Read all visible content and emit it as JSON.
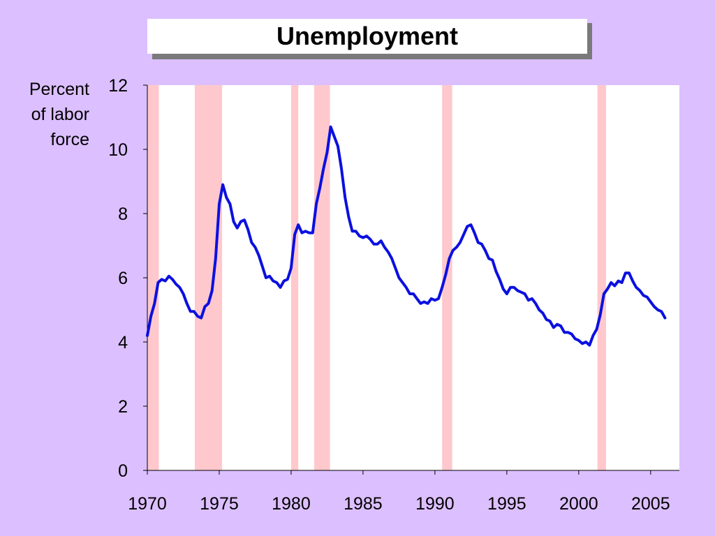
{
  "title": "Unemployment",
  "ylabel_lines": [
    "Percent",
    "of labor",
    "force"
  ],
  "colors": {
    "background": "#dcbfff",
    "plot_background": "#ffffff",
    "line": "#0b10e0",
    "recession": "#ffc8cc"
  },
  "chart_data": {
    "type": "line",
    "title": "Unemployment",
    "ylabel": "Percent of labor force",
    "xlabel": "",
    "xlim": [
      1970,
      2007
    ],
    "ylim": [
      0,
      12
    ],
    "xticks": [
      1970,
      1975,
      1980,
      1985,
      1990,
      1995,
      2000,
      2005
    ],
    "yticks": [
      0,
      2,
      4,
      6,
      8,
      10,
      12
    ],
    "grid": false,
    "recessions": [
      [
        1970.0,
        1970.8
      ],
      [
        1973.3,
        1975.2
      ],
      [
        1980.0,
        1980.5
      ],
      [
        1981.6,
        1982.7
      ],
      [
        1990.5,
        1991.2
      ],
      [
        2001.3,
        2001.9
      ]
    ],
    "series": [
      {
        "x": [
          1970.0,
          1970.25,
          1970.5,
          1970.75,
          1971.0,
          1971.25,
          1971.5,
          1971.75,
          1972.0,
          1972.25,
          1972.5,
          1972.75,
          1973.0,
          1973.25,
          1973.5,
          1973.75,
          1974.0,
          1974.25,
          1974.5,
          1974.75,
          1975.0,
          1975.25,
          1975.5,
          1975.75,
          1976.0,
          1976.25,
          1976.5,
          1976.75,
          1977.0,
          1977.25,
          1977.5,
          1977.75,
          1978.0,
          1978.25,
          1978.5,
          1978.75,
          1979.0,
          1979.25,
          1979.5,
          1979.75,
          1980.0,
          1980.25,
          1980.5,
          1980.75,
          1981.0,
          1981.25,
          1981.5,
          1981.75,
          1982.0,
          1982.25,
          1982.5,
          1982.75,
          1983.0,
          1983.25,
          1983.5,
          1983.75,
          1984.0,
          1984.25,
          1984.5,
          1984.75,
          1985.0,
          1985.25,
          1985.5,
          1985.75,
          1986.0,
          1986.25,
          1986.5,
          1986.75,
          1987.0,
          1987.25,
          1987.5,
          1987.75,
          1988.0,
          1988.25,
          1988.5,
          1988.75,
          1989.0,
          1989.25,
          1989.5,
          1989.75,
          1990.0,
          1990.25,
          1990.5,
          1990.75,
          1991.0,
          1991.25,
          1991.5,
          1991.75,
          1992.0,
          1992.25,
          1992.5,
          1992.75,
          1993.0,
          1993.25,
          1993.5,
          1993.75,
          1994.0,
          1994.25,
          1994.5,
          1994.75,
          1995.0,
          1995.25,
          1995.5,
          1995.75,
          1996.0,
          1996.25,
          1996.5,
          1996.75,
          1997.0,
          1997.25,
          1997.5,
          1997.75,
          1998.0,
          1998.25,
          1998.5,
          1998.75,
          1999.0,
          1999.25,
          1999.5,
          1999.75,
          2000.0,
          2000.25,
          2000.5,
          2000.75,
          2001.0,
          2001.25,
          2001.5,
          2001.75,
          2002.0,
          2002.25,
          2002.5,
          2002.75,
          2003.0,
          2003.25,
          2003.5,
          2003.75,
          2004.0,
          2004.25,
          2004.5,
          2004.75,
          2005.0,
          2005.25,
          2005.5,
          2005.75,
          2006.0
        ],
        "values": [
          4.2,
          4.8,
          5.2,
          5.85,
          5.95,
          5.9,
          6.05,
          5.95,
          5.8,
          5.7,
          5.5,
          5.2,
          4.95,
          4.95,
          4.8,
          4.75,
          5.1,
          5.2,
          5.6,
          6.6,
          8.3,
          8.9,
          8.5,
          8.3,
          7.75,
          7.55,
          7.75,
          7.8,
          7.5,
          7.1,
          6.95,
          6.7,
          6.35,
          6.0,
          6.05,
          5.9,
          5.85,
          5.7,
          5.9,
          5.95,
          6.3,
          7.35,
          7.65,
          7.4,
          7.45,
          7.4,
          7.4,
          8.3,
          8.8,
          9.4,
          9.9,
          10.7,
          10.4,
          10.1,
          9.4,
          8.5,
          7.9,
          7.45,
          7.45,
          7.3,
          7.25,
          7.3,
          7.2,
          7.05,
          7.05,
          7.15,
          6.95,
          6.8,
          6.6,
          6.3,
          6.0,
          5.85,
          5.7,
          5.5,
          5.5,
          5.35,
          5.2,
          5.25,
          5.2,
          5.35,
          5.3,
          5.35,
          5.7,
          6.1,
          6.6,
          6.85,
          6.95,
          7.1,
          7.35,
          7.6,
          7.65,
          7.4,
          7.1,
          7.05,
          6.85,
          6.6,
          6.55,
          6.2,
          5.95,
          5.65,
          5.5,
          5.7,
          5.7,
          5.6,
          5.55,
          5.5,
          5.3,
          5.35,
          5.2,
          5.0,
          4.9,
          4.7,
          4.65,
          4.45,
          4.55,
          4.5,
          4.3,
          4.3,
          4.25,
          4.1,
          4.05,
          3.95,
          4.0,
          3.9,
          4.2,
          4.4,
          4.85,
          5.5,
          5.65,
          5.85,
          5.75,
          5.9,
          5.85,
          6.15,
          6.15,
          5.9,
          5.7,
          5.6,
          5.45,
          5.4,
          5.25,
          5.1,
          5.0,
          4.95,
          4.75
        ]
      }
    ]
  }
}
